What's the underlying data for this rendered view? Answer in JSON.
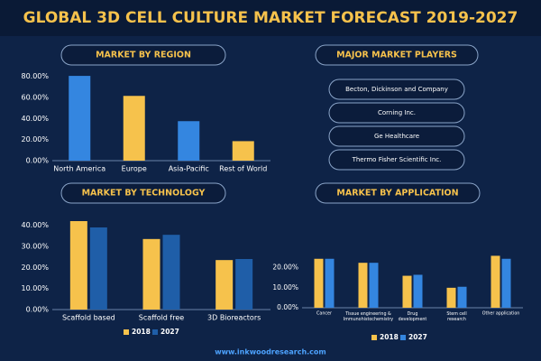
{
  "title": "GLOBAL 3D CELL CULTURE MARKET FORECAST 2019-2027",
  "chart_data": [
    {
      "type": "bar",
      "title": "MARKET BY REGION",
      "categories": [
        "North America",
        "Europe",
        "Asia-Pacific",
        "Rest of World"
      ],
      "values": [
        80.5,
        61.5,
        37.5,
        18.5
      ],
      "colors": [
        "#3486e0",
        "#f6c24c",
        "#3486e0",
        "#f6c24c"
      ],
      "ylim": [
        0,
        90
      ],
      "yticks": [
        {
          "value": 0,
          "label": "0.00%"
        },
        {
          "value": 20,
          "label": "20.00%"
        },
        {
          "value": 40,
          "label": "40.00%"
        },
        {
          "value": 60,
          "label": "60.00%"
        },
        {
          "value": 80,
          "label": "80.00%"
        }
      ],
      "grid": false
    },
    {
      "type": "grouped_bar",
      "title": "MARKET BY TECHNOLOGY",
      "categories": [
        "Scaffold based",
        "Scaffold free",
        "3D Bioreactors"
      ],
      "series": [
        {
          "name": "2018",
          "color": "#f6c24c",
          "values": [
            42,
            33.5,
            23.5
          ]
        },
        {
          "name": "2027",
          "color": "#1f5ea8",
          "values": [
            39,
            35.5,
            24
          ]
        }
      ],
      "ylim": [
        0,
        45
      ],
      "yticks": [
        {
          "value": 0,
          "label": "0.00%"
        },
        {
          "value": 10,
          "label": "10.00%"
        },
        {
          "value": 20,
          "label": "20.00%"
        },
        {
          "value": 30,
          "label": "30.00%"
        },
        {
          "value": 40,
          "label": "40.00%"
        }
      ],
      "grid": false
    },
    {
      "type": "grouped_bar",
      "title": "MARKET BY APPLICATION",
      "categories": [
        "Cancer",
        "Tissue engineering &\nImmunohistochemistry",
        "Drug\ndevelopment",
        "Stem cell\nresearch",
        "Other application"
      ],
      "series": [
        {
          "name": "2018",
          "color": "#f6c24c",
          "values": [
            24.5,
            22.5,
            16,
            10,
            26
          ]
        },
        {
          "name": "2027",
          "color": "#3486e0",
          "values": [
            24.5,
            22.5,
            16.5,
            10.5,
            24.5
          ]
        }
      ],
      "ylim": [
        0,
        28
      ],
      "yticks": [
        {
          "value": 0,
          "label": "0.00%"
        },
        {
          "value": 10,
          "label": "10.00%"
        },
        {
          "value": 20,
          "label": "20.00%"
        }
      ],
      "grid": false
    }
  ],
  "players": {
    "title": "MAJOR MARKET PLAYERS",
    "items": [
      "Becton, Dickinson and Company",
      "Corning Inc.",
      "Ge Healthcare",
      "Thermo Fisher Scientific Inc."
    ]
  },
  "footer": "www.inkwoodresearch.com"
}
